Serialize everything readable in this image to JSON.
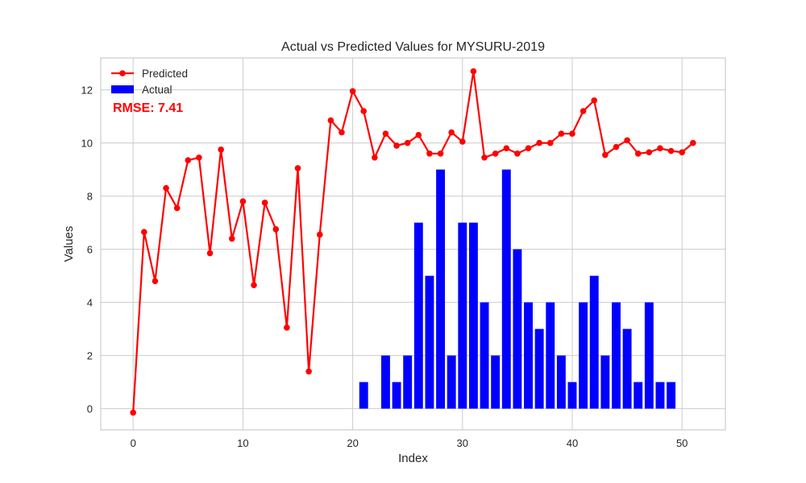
{
  "chart_data": {
    "type": "bar",
    "title": "Actual vs Predicted Values for MYSURU-2019",
    "xlabel": "Index",
    "ylabel": "Values",
    "xlim": [
      -2.95,
      53.95
    ],
    "ylim": [
      -0.8,
      13.2
    ],
    "xticks": [
      0,
      10,
      20,
      30,
      40,
      50
    ],
    "yticks": [
      0,
      2,
      4,
      6,
      8,
      10,
      12
    ],
    "grid": true,
    "legend_position": "top-left",
    "annotation": "RMSE: 7.41",
    "series": [
      {
        "name": "Predicted",
        "type": "line",
        "color": "#ff0000",
        "marker": "circle",
        "x": [
          0,
          1,
          2,
          3,
          4,
          5,
          6,
          7,
          8,
          9,
          10,
          11,
          12,
          13,
          14,
          15,
          16,
          17,
          18,
          19,
          20,
          21,
          22,
          23,
          24,
          25,
          26,
          27,
          28,
          29,
          30,
          31,
          32,
          33,
          34,
          35,
          36,
          37,
          38,
          39,
          40,
          41,
          42,
          43,
          44,
          45,
          46,
          47,
          48,
          49,
          50,
          51
        ],
        "values": [
          -0.15,
          6.65,
          4.8,
          8.3,
          7.55,
          9.35,
          9.45,
          5.85,
          9.75,
          6.4,
          7.8,
          4.65,
          7.75,
          6.75,
          3.05,
          9.05,
          1.4,
          6.55,
          10.85,
          10.4,
          11.95,
          11.2,
          9.45,
          10.35,
          9.9,
          10.0,
          10.3,
          9.6,
          9.6,
          10.4,
          10.05,
          12.7,
          9.45,
          9.6,
          9.8,
          9.6,
          9.8,
          10.0,
          10.0,
          10.35,
          10.35,
          11.2,
          11.6,
          9.55,
          9.85,
          10.1,
          9.6,
          9.65,
          9.8,
          9.7,
          9.65,
          10.0
        ]
      },
      {
        "name": "Actual",
        "type": "bar",
        "color": "#0000ff",
        "x": [
          21,
          22,
          23,
          24,
          25,
          26,
          27,
          28,
          29,
          30,
          31,
          32,
          33,
          34,
          35,
          36,
          37,
          38,
          39,
          40,
          41,
          42,
          43,
          44,
          45,
          46,
          47,
          48,
          49
        ],
        "values": [
          1,
          0,
          2,
          1,
          2,
          7,
          5,
          9,
          2,
          7,
          7,
          4,
          2,
          9,
          6,
          4,
          3,
          4,
          2,
          1,
          4,
          5,
          2,
          4,
          3,
          1,
          4,
          1,
          1
        ]
      }
    ]
  }
}
